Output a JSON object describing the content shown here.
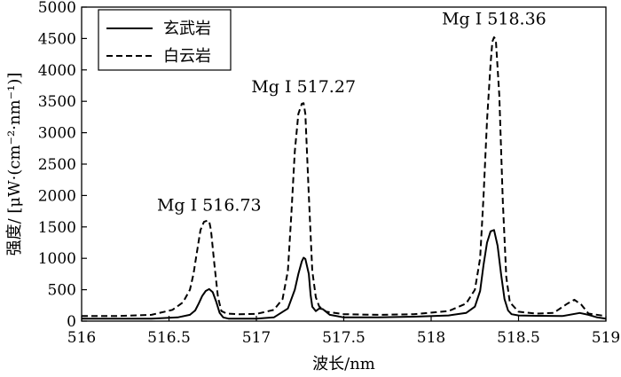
{
  "chart_data": {
    "type": "line",
    "xlabel": "波长/nm",
    "ylabel": "强度/ [μW·(cm⁻²·nm⁻¹)]",
    "xlim": [
      516,
      519
    ],
    "ylim": [
      0,
      5000
    ],
    "x_ticks": [
      "516",
      "516.5",
      "517",
      "517.5",
      "518",
      "518.5",
      "519"
    ],
    "y_ticks": [
      "0",
      "500",
      "1000",
      "1500",
      "2000",
      "2500",
      "3000",
      "3500",
      "4000",
      "4500",
      "5000"
    ],
    "grid": false,
    "legend_position": "top-left",
    "annotations": [
      {
        "text": "Mg I 516.73",
        "x": 516.73,
        "y": 1620
      },
      {
        "text": "Mg I 517.27",
        "x": 517.27,
        "y": 3500
      },
      {
        "text": "Mg I 518.36",
        "x": 518.36,
        "y": 4580
      }
    ],
    "series": [
      {
        "name": "玄武岩",
        "style": "solid",
        "color": "#000000",
        "x": [
          516.0,
          516.2,
          516.4,
          516.55,
          516.62,
          516.65,
          516.67,
          516.69,
          516.71,
          516.73,
          516.75,
          516.77,
          516.79,
          516.81,
          516.84,
          516.9,
          517.0,
          517.1,
          517.18,
          517.22,
          517.24,
          517.26,
          517.27,
          517.28,
          517.3,
          517.31,
          517.32,
          517.34,
          517.36,
          517.38,
          517.42,
          517.5,
          517.7,
          517.9,
          518.1,
          518.2,
          518.25,
          518.28,
          518.3,
          518.32,
          518.34,
          518.36,
          518.38,
          518.4,
          518.42,
          518.44,
          518.46,
          518.5,
          518.6,
          518.75,
          518.85,
          518.9,
          518.95,
          519.0
        ],
        "y": [
          40,
          40,
          40,
          60,
          100,
          170,
          280,
          400,
          480,
          510,
          460,
          310,
          130,
          60,
          40,
          40,
          40,
          60,
          200,
          500,
          750,
          950,
          1010,
          990,
          750,
          420,
          230,
          160,
          200,
          190,
          100,
          60,
          60,
          70,
          90,
          130,
          230,
          480,
          900,
          1250,
          1430,
          1450,
          1200,
          750,
          350,
          170,
          110,
          90,
          85,
          80,
          130,
          100,
          60,
          40
        ]
      },
      {
        "name": "白云岩",
        "style": "dashed",
        "color": "#000000",
        "x": [
          516.0,
          516.2,
          516.4,
          516.52,
          516.58,
          516.62,
          516.64,
          516.66,
          516.68,
          516.7,
          516.72,
          516.73,
          516.74,
          516.76,
          516.78,
          516.8,
          516.83,
          516.9,
          517.0,
          517.1,
          517.15,
          517.18,
          517.2,
          517.22,
          517.24,
          517.26,
          517.27,
          517.28,
          517.3,
          517.32,
          517.34,
          517.36,
          517.4,
          517.5,
          517.7,
          517.9,
          518.1,
          518.2,
          518.25,
          518.28,
          518.3,
          518.32,
          518.34,
          518.35,
          518.36,
          518.37,
          518.39,
          518.41,
          518.43,
          518.45,
          518.5,
          518.6,
          518.7,
          518.78,
          518.82,
          518.86,
          518.9,
          519.0
        ],
        "y": [
          80,
          80,
          100,
          180,
          300,
          500,
          750,
          1100,
          1450,
          1580,
          1600,
          1590,
          1450,
          900,
          380,
          160,
          120,
          110,
          115,
          180,
          350,
          800,
          1700,
          2700,
          3300,
          3460,
          3470,
          3300,
          2000,
          800,
          380,
          230,
          150,
          110,
          100,
          110,
          160,
          280,
          500,
          1000,
          2000,
          3200,
          4100,
          4450,
          4520,
          4480,
          3600,
          1900,
          700,
          300,
          150,
          120,
          130,
          280,
          340,
          260,
          120,
          80
        ]
      }
    ]
  }
}
